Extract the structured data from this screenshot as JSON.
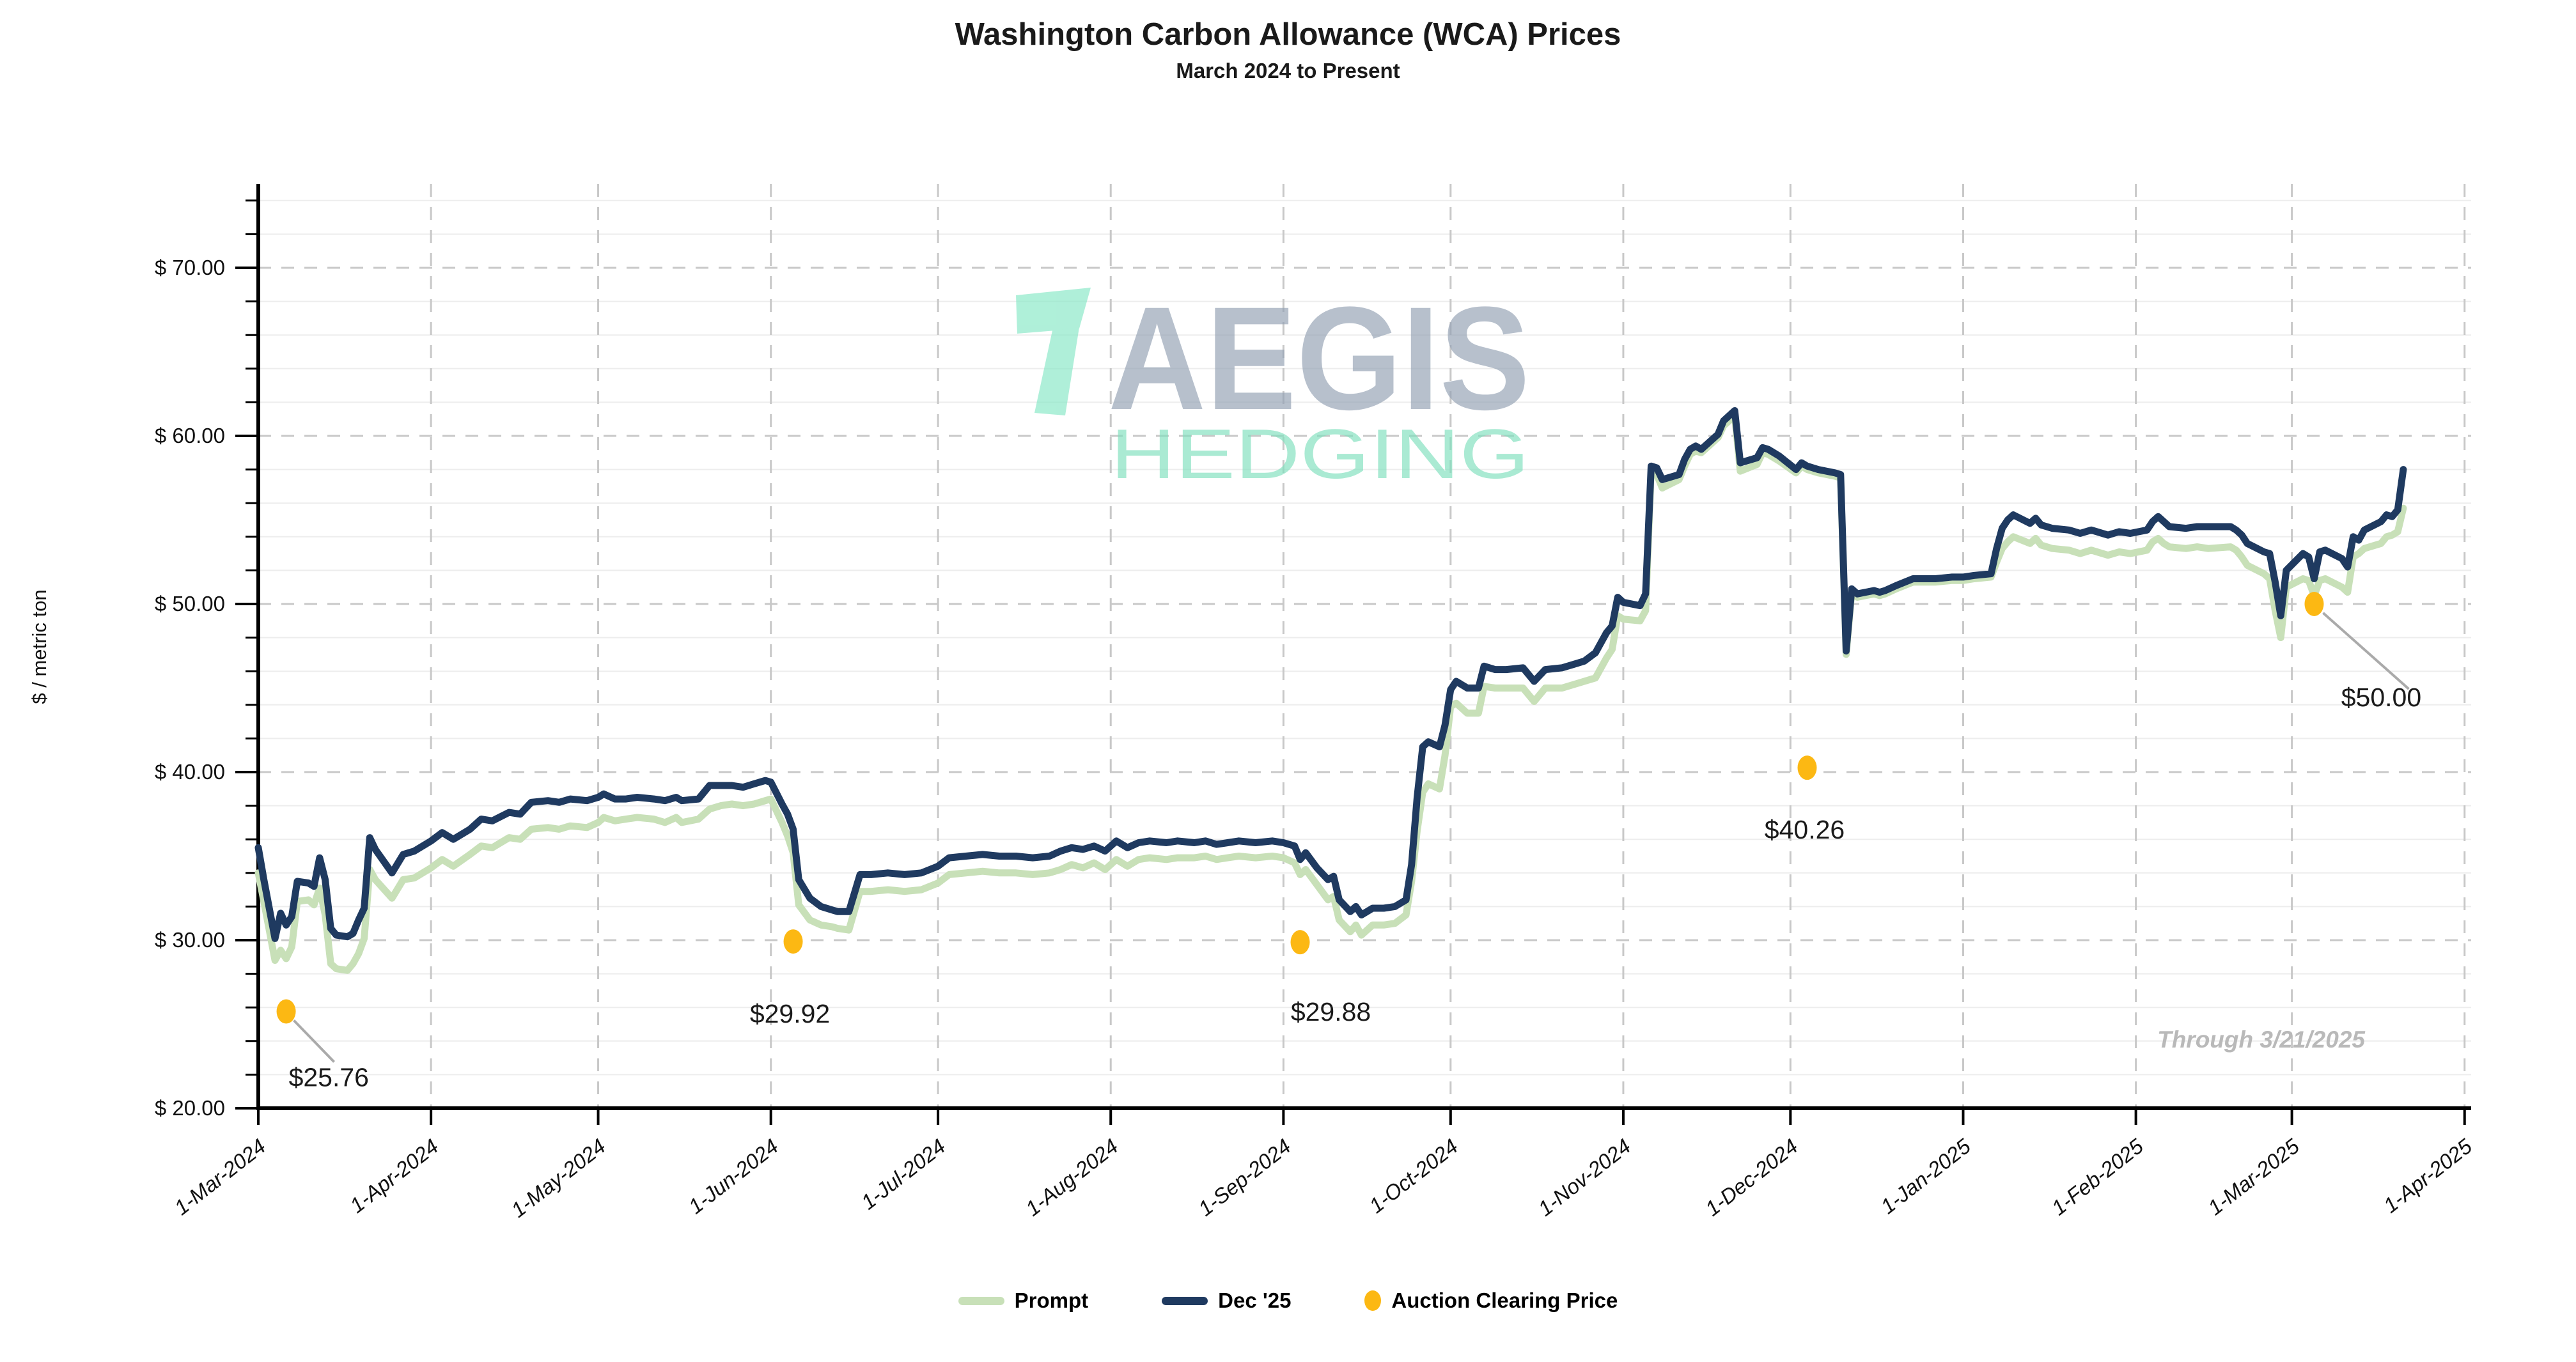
{
  "header": {
    "title": "Washington Carbon Allowance (WCA) Prices",
    "subtitle": "March 2024 to Present"
  },
  "watermark": {
    "brand": "AEGIS",
    "tagline": "HEDGING"
  },
  "note": "Through 3/21/2025",
  "legend": [
    {
      "label": "Prompt",
      "color": "#c8e0b8",
      "type": "line"
    },
    {
      "label": "Dec '25",
      "color": "#1f3a60",
      "type": "line"
    },
    {
      "label": "Auction Clearing Price",
      "color": "#fcb813",
      "type": "dot"
    }
  ],
  "colors": {
    "prompt": "#c8e0b8",
    "dec25": "#1f3a60",
    "auction_dot": "#fcb813",
    "grid_minor": "#ededed",
    "grid_major_dashed": "#c8c8c8",
    "axis": "#000000",
    "auction_label": "#1a1a1a",
    "leader_line": "#aaaaaa",
    "watermark_mark": "#86e8c6",
    "watermark_brand": "#92a0b3",
    "watermark_tagline": "#7fe0bd"
  },
  "chart_data": {
    "type": "line",
    "title": "Washington Carbon Allowance (WCA) Prices",
    "subtitle": "March 2024 to Present",
    "xlabel": "",
    "ylabel": "$ / metric ton",
    "ylim": [
      20,
      75
    ],
    "grid": {
      "minor_solid_step": 2,
      "major_dashed_step": 10,
      "vertical_dashed": "monthly"
    },
    "legend_position": "bottom",
    "y_ticks": [
      {
        "value": 20,
        "label": "$ 20.00"
      },
      {
        "value": 30,
        "label": "$ 30.00"
      },
      {
        "value": 40,
        "label": "$ 40.00"
      },
      {
        "value": 50,
        "label": "$ 50.00"
      },
      {
        "value": 60,
        "label": "$ 60.00"
      },
      {
        "value": 70,
        "label": "$ 70.00"
      }
    ],
    "x_unit": "days since 2024-03-01",
    "x_ticks": [
      {
        "day": 0,
        "label": "1-Mar-2024"
      },
      {
        "day": 31,
        "label": "1-Apr-2024"
      },
      {
        "day": 61,
        "label": "1-May-2024"
      },
      {
        "day": 92,
        "label": "1-Jun-2024"
      },
      {
        "day": 122,
        "label": "1-Jul-2024"
      },
      {
        "day": 153,
        "label": "1-Aug-2024"
      },
      {
        "day": 184,
        "label": "1-Sep-2024"
      },
      {
        "day": 214,
        "label": "1-Oct-2024"
      },
      {
        "day": 245,
        "label": "1-Nov-2024"
      },
      {
        "day": 275,
        "label": "1-Dec-2024"
      },
      {
        "day": 306,
        "label": "1-Jan-2025"
      },
      {
        "day": 337,
        "label": "1-Feb-2025"
      },
      {
        "day": 365,
        "label": "1-Mar-2025"
      },
      {
        "day": 396,
        "label": "1-Apr-2025"
      }
    ],
    "series_names": [
      "Prompt",
      "Dec '25"
    ],
    "rows_format": [
      "day",
      "prompt_usd_per_t",
      "dec25_usd_per_t"
    ],
    "rows": [
      [
        0,
        34.0,
        35.5
      ],
      [
        1,
        32.3,
        33.6
      ],
      [
        3,
        28.8,
        30.1
      ],
      [
        4,
        29.4,
        31.6
      ],
      [
        5,
        28.9,
        30.9
      ],
      [
        6,
        29.6,
        31.4
      ],
      [
        7,
        32.3,
        33.5
      ],
      [
        9,
        32.4,
        33.4
      ],
      [
        10,
        32.1,
        33.2
      ],
      [
        11,
        33.1,
        34.9
      ],
      [
        12,
        31.5,
        33.6
      ],
      [
        13,
        28.6,
        30.7
      ],
      [
        14,
        28.3,
        30.3
      ],
      [
        16,
        28.2,
        30.2
      ],
      [
        17,
        28.6,
        30.4
      ],
      [
        18,
        29.2,
        31.2
      ],
      [
        19,
        30.1,
        31.9
      ],
      [
        20,
        34.2,
        36.1
      ],
      [
        21,
        33.6,
        35.4
      ],
      [
        24,
        32.5,
        34.0
      ],
      [
        26,
        33.6,
        35.1
      ],
      [
        28,
        33.7,
        35.3
      ],
      [
        31,
        34.3,
        35.9
      ],
      [
        33,
        34.8,
        36.4
      ],
      [
        35,
        34.4,
        36.0
      ],
      [
        38,
        35.1,
        36.6
      ],
      [
        40,
        35.6,
        37.2
      ],
      [
        42,
        35.5,
        37.1
      ],
      [
        45,
        36.1,
        37.6
      ],
      [
        47,
        36.0,
        37.5
      ],
      [
        49,
        36.6,
        38.2
      ],
      [
        52,
        36.7,
        38.3
      ],
      [
        54,
        36.6,
        38.2
      ],
      [
        56,
        36.8,
        38.4
      ],
      [
        59,
        36.7,
        38.3
      ],
      [
        61,
        37.0,
        38.5
      ],
      [
        62,
        37.3,
        38.7
      ],
      [
        64,
        37.1,
        38.4
      ],
      [
        66,
        37.2,
        38.4
      ],
      [
        68,
        37.3,
        38.5
      ],
      [
        71,
        37.2,
        38.4
      ],
      [
        73,
        37.0,
        38.3
      ],
      [
        75,
        37.3,
        38.5
      ],
      [
        76,
        37.0,
        38.3
      ],
      [
        79,
        37.2,
        38.4
      ],
      [
        81,
        37.8,
        39.2
      ],
      [
        83,
        38.0,
        39.2
      ],
      [
        85,
        38.1,
        39.2
      ],
      [
        87,
        38.0,
        39.1
      ],
      [
        89,
        38.1,
        39.3
      ],
      [
        91,
        38.3,
        39.5
      ],
      [
        92,
        38.4,
        39.4
      ],
      [
        94,
        37.0,
        38.1
      ],
      [
        95,
        36.2,
        37.5
      ],
      [
        96,
        35.2,
        36.6
      ],
      [
        97,
        32.1,
        33.6
      ],
      [
        99,
        31.2,
        32.5
      ],
      [
        101,
        30.9,
        32.0
      ],
      [
        103,
        30.8,
        31.8
      ],
      [
        104,
        30.7,
        31.7
      ],
      [
        106,
        30.6,
        31.7
      ],
      [
        108,
        32.9,
        33.9
      ],
      [
        110,
        32.9,
        33.9
      ],
      [
        113,
        33.0,
        34.0
      ],
      [
        116,
        32.9,
        33.9
      ],
      [
        119,
        33.0,
        34.0
      ],
      [
        122,
        33.4,
        34.4
      ],
      [
        124,
        33.9,
        34.9
      ],
      [
        127,
        34.0,
        35.0
      ],
      [
        130,
        34.1,
        35.1
      ],
      [
        133,
        34.0,
        35.0
      ],
      [
        136,
        34.0,
        35.0
      ],
      [
        139,
        33.9,
        34.9
      ],
      [
        142,
        34.0,
        35.0
      ],
      [
        144,
        34.2,
        35.3
      ],
      [
        146,
        34.5,
        35.5
      ],
      [
        148,
        34.3,
        35.4
      ],
      [
        150,
        34.6,
        35.6
      ],
      [
        152,
        34.2,
        35.3
      ],
      [
        154,
        34.8,
        35.9
      ],
      [
        156,
        34.4,
        35.5
      ],
      [
        158,
        34.8,
        35.8
      ],
      [
        160,
        34.9,
        35.9
      ],
      [
        163,
        34.8,
        35.8
      ],
      [
        165,
        34.9,
        35.9
      ],
      [
        168,
        34.9,
        35.8
      ],
      [
        170,
        35.0,
        35.9
      ],
      [
        172,
        34.8,
        35.7
      ],
      [
        174,
        34.9,
        35.8
      ],
      [
        176,
        35.0,
        35.9
      ],
      [
        179,
        34.9,
        35.8
      ],
      [
        182,
        35.0,
        35.9
      ],
      [
        184,
        34.9,
        35.8
      ],
      [
        186,
        34.6,
        35.6
      ],
      [
        187,
        33.9,
        34.8
      ],
      [
        188,
        34.2,
        35.2
      ],
      [
        190,
        33.3,
        34.3
      ],
      [
        192,
        32.4,
        33.6
      ],
      [
        193,
        32.6,
        33.8
      ],
      [
        194,
        31.2,
        32.4
      ],
      [
        196,
        30.5,
        31.7
      ],
      [
        197,
        30.9,
        32.0
      ],
      [
        198,
        30.3,
        31.5
      ],
      [
        200,
        30.9,
        31.9
      ],
      [
        202,
        30.9,
        31.9
      ],
      [
        204,
        31.0,
        32.0
      ],
      [
        206,
        31.5,
        32.4
      ],
      [
        207,
        33.5,
        34.5
      ],
      [
        208,
        36.5,
        38.5
      ],
      [
        209,
        38.8,
        41.5
      ],
      [
        210,
        39.3,
        41.8
      ],
      [
        212,
        39.0,
        41.5
      ],
      [
        213,
        41.0,
        42.8
      ],
      [
        214,
        43.9,
        44.9
      ],
      [
        215,
        44.1,
        45.4
      ],
      [
        217,
        43.5,
        45.0
      ],
      [
        219,
        43.5,
        45.0
      ],
      [
        220,
        45.1,
        46.3
      ],
      [
        222,
        45.0,
        46.1
      ],
      [
        224,
        45.0,
        46.1
      ],
      [
        227,
        45.0,
        46.2
      ],
      [
        229,
        44.2,
        45.4
      ],
      [
        231,
        45.0,
        46.1
      ],
      [
        234,
        45.0,
        46.2
      ],
      [
        236,
        45.2,
        46.4
      ],
      [
        238,
        45.4,
        46.6
      ],
      [
        240,
        45.6,
        47.1
      ],
      [
        242,
        46.8,
        48.3
      ],
      [
        243,
        47.3,
        48.7
      ],
      [
        244,
        49.3,
        50.4
      ],
      [
        245,
        49.1,
        50.1
      ],
      [
        248,
        49.0,
        49.9
      ],
      [
        249,
        49.6,
        50.6
      ],
      [
        250,
        57.9,
        58.2
      ],
      [
        251,
        57.7,
        58.1
      ],
      [
        252,
        56.9,
        57.4
      ],
      [
        255,
        57.4,
        57.7
      ],
      [
        256,
        58.2,
        58.6
      ],
      [
        257,
        58.9,
        59.2
      ],
      [
        258,
        59.1,
        59.4
      ],
      [
        259,
        59.0,
        59.2
      ],
      [
        262,
        59.9,
        60.1
      ],
      [
        263,
        60.6,
        60.9
      ],
      [
        265,
        61.2,
        61.5
      ],
      [
        266,
        57.9,
        58.4
      ],
      [
        269,
        58.3,
        58.7
      ],
      [
        270,
        59.0,
        59.3
      ],
      [
        271,
        58.9,
        59.2
      ],
      [
        273,
        58.5,
        58.8
      ],
      [
        276,
        57.8,
        58.0
      ],
      [
        277,
        58.2,
        58.4
      ],
      [
        278,
        58.0,
        58.2
      ],
      [
        280,
        57.8,
        58.0
      ],
      [
        283,
        57.6,
        57.8
      ],
      [
        284,
        57.5,
        57.7
      ],
      [
        285,
        47.0,
        47.2
      ],
      [
        286,
        50.7,
        50.9
      ],
      [
        287,
        50.4,
        50.6
      ],
      [
        290,
        50.6,
        50.8
      ],
      [
        291,
        50.5,
        50.7
      ],
      [
        292,
        50.6,
        50.8
      ],
      [
        294,
        50.9,
        51.1
      ],
      [
        297,
        51.3,
        51.5
      ],
      [
        301,
        51.3,
        51.5
      ],
      [
        304,
        51.4,
        51.6
      ],
      [
        306,
        51.4,
        51.6
      ],
      [
        308,
        51.5,
        51.7
      ],
      [
        311,
        51.6,
        51.8
      ],
      [
        312,
        52.5,
        53.3
      ],
      [
        313,
        53.3,
        54.5
      ],
      [
        314,
        53.7,
        55.0
      ],
      [
        315,
        54.0,
        55.3
      ],
      [
        318,
        53.6,
        54.8
      ],
      [
        319,
        53.9,
        55.1
      ],
      [
        320,
        53.5,
        54.7
      ],
      [
        322,
        53.3,
        54.5
      ],
      [
        325,
        53.2,
        54.4
      ],
      [
        327,
        53.0,
        54.2
      ],
      [
        329,
        53.2,
        54.4
      ],
      [
        332,
        52.9,
        54.1
      ],
      [
        334,
        53.1,
        54.3
      ],
      [
        336,
        53.0,
        54.2
      ],
      [
        339,
        53.2,
        54.4
      ],
      [
        340,
        53.7,
        54.9
      ],
      [
        341,
        53.9,
        55.2
      ],
      [
        342,
        53.6,
        54.9
      ],
      [
        343,
        53.4,
        54.6
      ],
      [
        346,
        53.3,
        54.5
      ],
      [
        348,
        53.4,
        54.6
      ],
      [
        350,
        53.3,
        54.6
      ],
      [
        354,
        53.4,
        54.6
      ],
      [
        355,
        53.2,
        54.4
      ],
      [
        356,
        52.8,
        54.1
      ],
      [
        357,
        52.3,
        53.6
      ],
      [
        360,
        51.8,
        53.1
      ],
      [
        361,
        51.5,
        53.0
      ],
      [
        362,
        49.6,
        51.3
      ],
      [
        363,
        48.0,
        49.3
      ],
      [
        364,
        51.0,
        52.0
      ],
      [
        367,
        51.5,
        53.0
      ],
      [
        368,
        51.4,
        52.8
      ],
      [
        369,
        50.5,
        51.5
      ],
      [
        370,
        51.4,
        53.1
      ],
      [
        371,
        51.5,
        53.2
      ],
      [
        374,
        51.0,
        52.7
      ],
      [
        375,
        50.7,
        52.2
      ],
      [
        376,
        52.8,
        54.0
      ],
      [
        377,
        53.0,
        53.8
      ],
      [
        378,
        53.3,
        54.4
      ],
      [
        381,
        53.6,
        54.9
      ],
      [
        382,
        54.0,
        55.3
      ],
      [
        383,
        54.1,
        55.2
      ],
      [
        384,
        54.3,
        55.6
      ],
      [
        385,
        55.7,
        58.0
      ]
    ],
    "auction_clearing_prices": [
      {
        "date": "2024-03-06",
        "day": 5,
        "price": 25.76,
        "label": "$25.76"
      },
      {
        "date": "2024-06-05",
        "day": 96,
        "price": 29.92,
        "label": "$29.92"
      },
      {
        "date": "2024-09-04",
        "day": 187,
        "price": 29.88,
        "label": "$29.88"
      },
      {
        "date": "2024-12-04",
        "day": 278,
        "price": 40.26,
        "label": "$40.26"
      },
      {
        "date": "2025-03-05",
        "day": 369,
        "price": 50.0,
        "label": "$50.00"
      }
    ],
    "annotations": [
      "Through 3/21/2025"
    ]
  }
}
